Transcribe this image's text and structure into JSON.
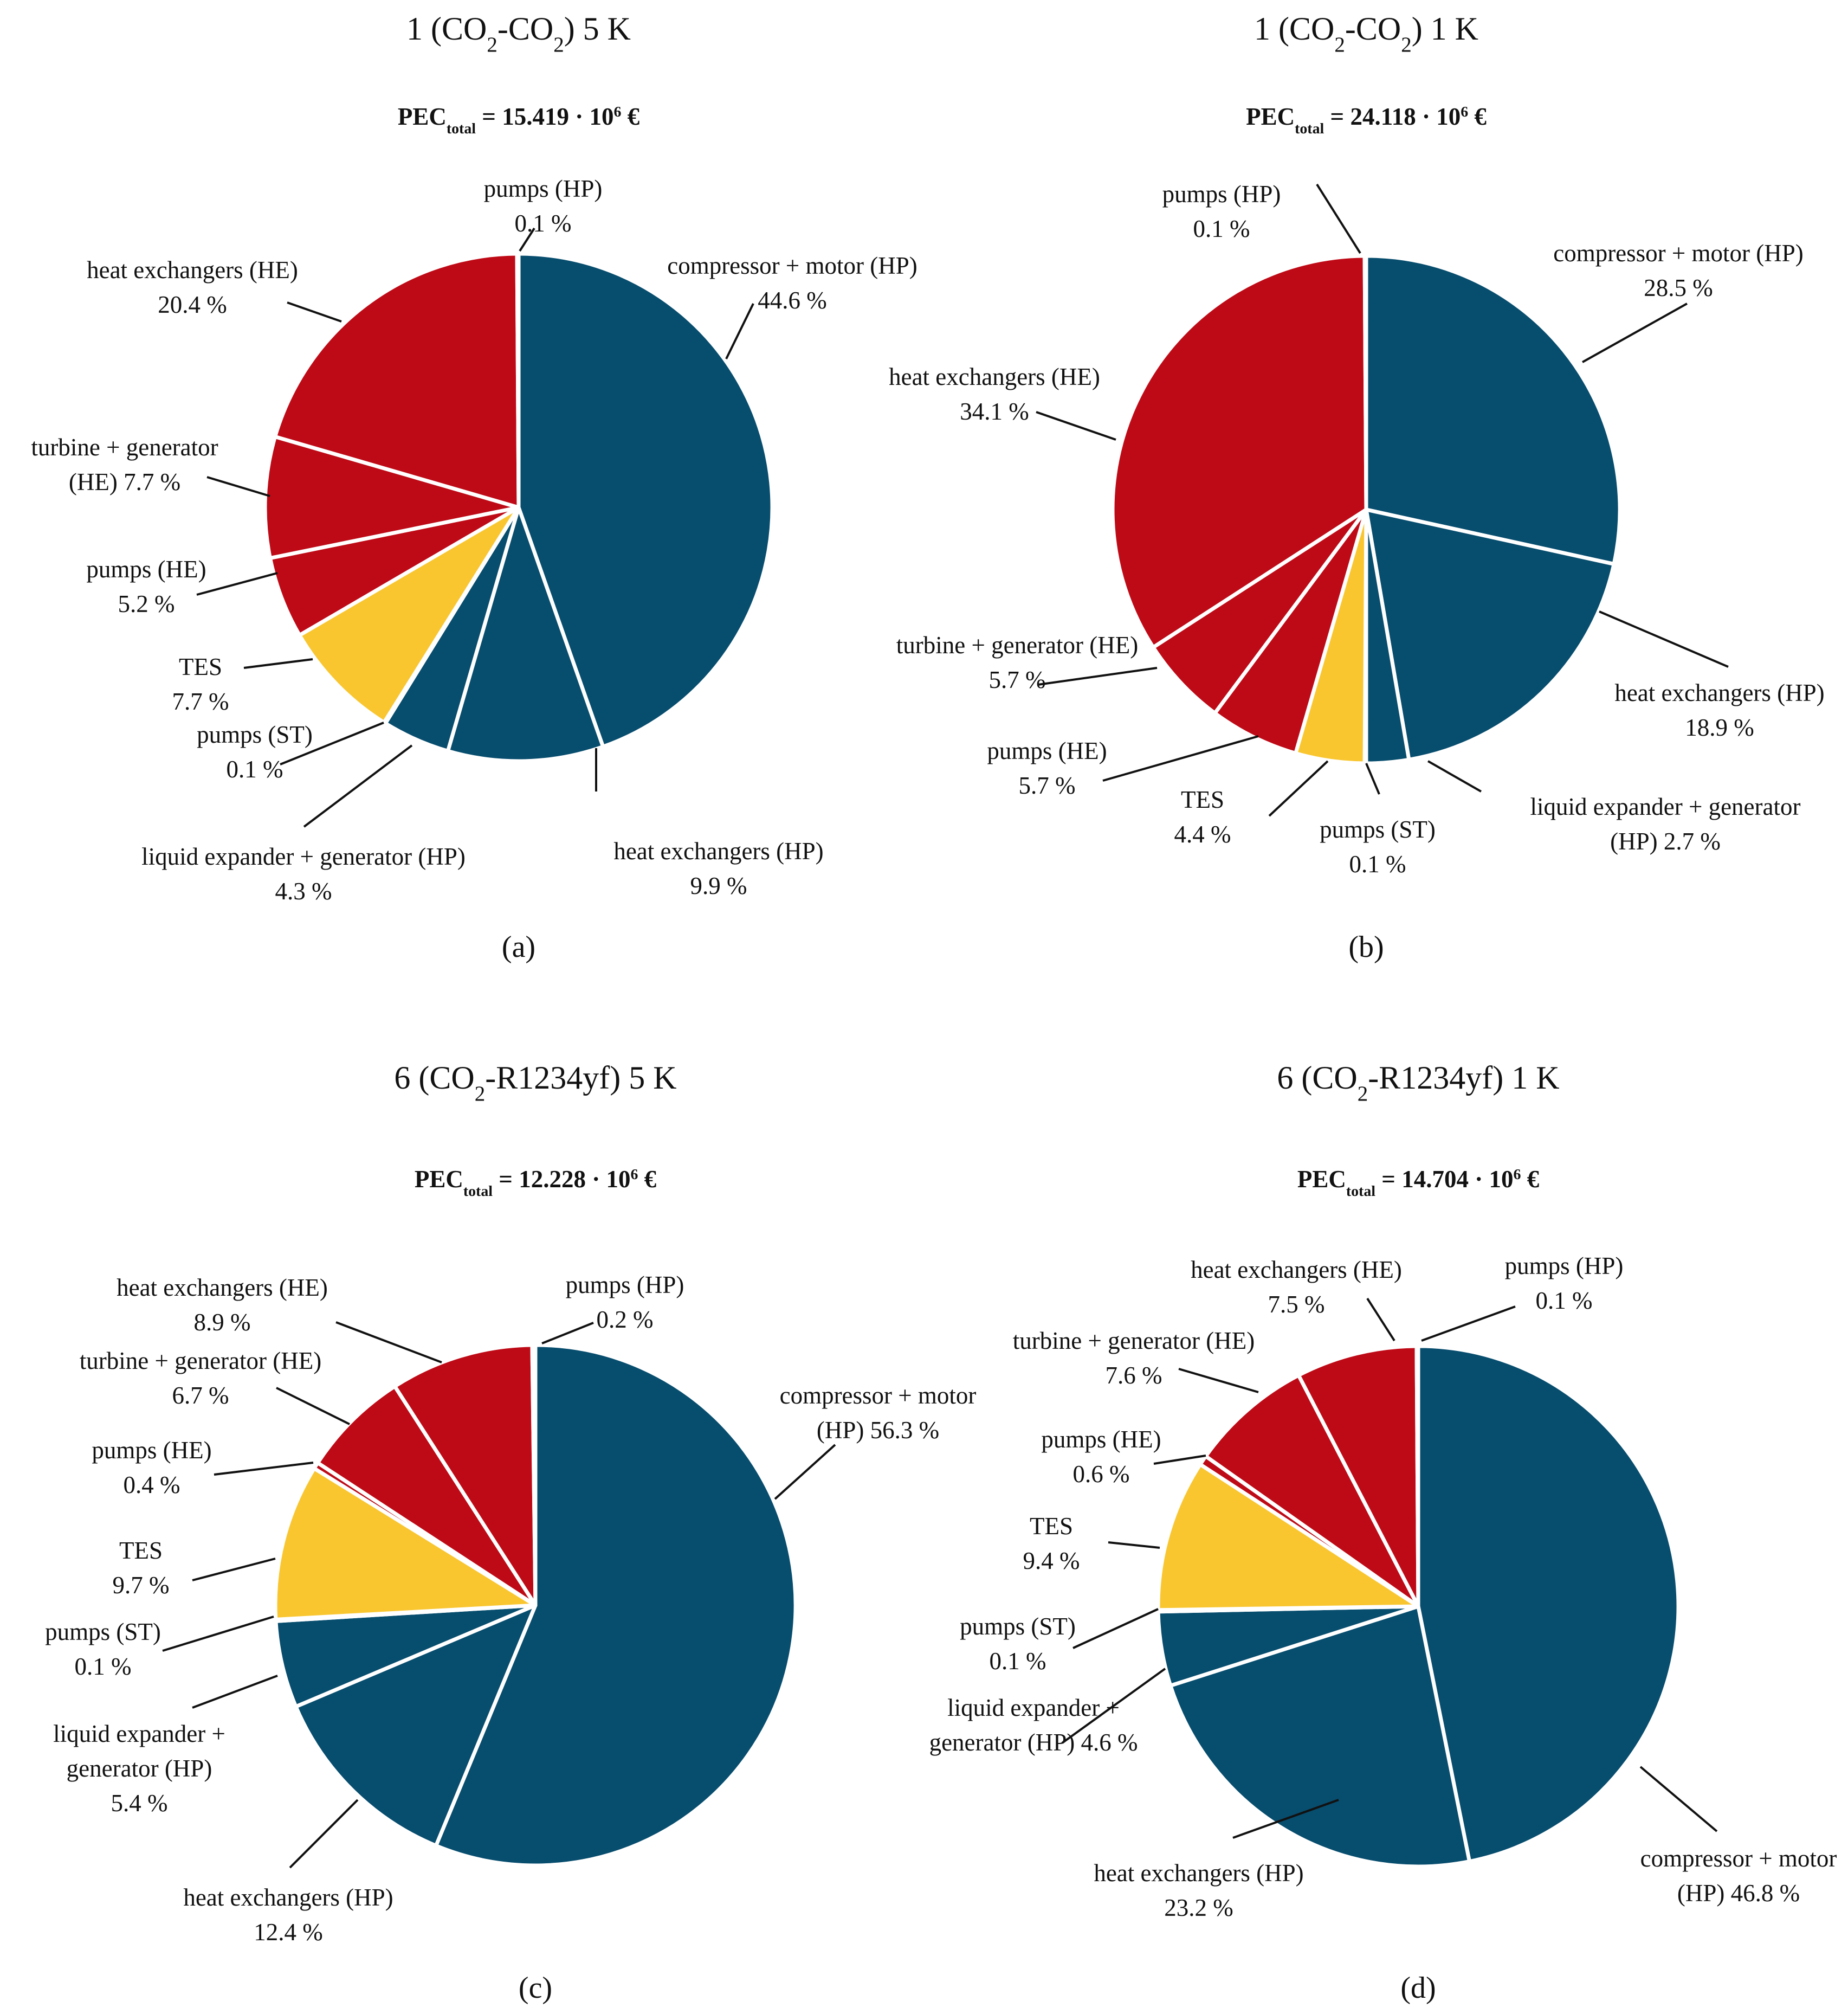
{
  "colors": {
    "HP": "#074D6E",
    "HE": "#BE0A16",
    "ST": "#F9C630"
  },
  "chart_data": [
    {
      "type": "pie",
      "title": {
        "pre": "1 (CO",
        "sub1": "2",
        "mid": "-CO",
        "sub2": "2",
        "post": ") 5 K"
      },
      "pec": {
        "pre": "PEC",
        "sub": "total",
        "mid": " = 15.419 · 10",
        "sup": "6",
        "post": " €"
      },
      "panel_label": "(a)",
      "slices": [
        {
          "name": "compressor + motor (HP)",
          "value": 44.6,
          "group": "HP",
          "label": [
            "compressor + motor (HP)",
            "44.6 %"
          ]
        },
        {
          "name": "heat exchangers (HP)",
          "value": 9.9,
          "group": "HP",
          "label": [
            "heat exchangers (HP)",
            "9.9 %"
          ]
        },
        {
          "name": "liquid expander + generator (HP)",
          "value": 4.3,
          "group": "HP",
          "label": [
            "liquid expander + generator (HP)",
            "4.3 %"
          ]
        },
        {
          "name": "pumps (ST)",
          "value": 0.1,
          "group": "ST",
          "label": [
            "pumps (ST)",
            "0.1 %"
          ]
        },
        {
          "name": "TES",
          "value": 7.7,
          "group": "ST",
          "label": [
            "TES",
            "7.7 %"
          ]
        },
        {
          "name": "pumps (HE)",
          "value": 5.2,
          "group": "HE",
          "label": [
            "pumps (HE)",
            "5.2 %"
          ]
        },
        {
          "name": "turbine + generator (HE)",
          "value": 7.7,
          "group": "HE",
          "label": [
            "turbine + generator",
            "(HE) 7.7 %"
          ]
        },
        {
          "name": "heat exchangers (HE)",
          "value": 20.4,
          "group": "HE",
          "label": [
            "heat exchangers (HE)",
            "20.4 %"
          ]
        },
        {
          "name": "pumps (HP)",
          "value": 0.1,
          "group": "HP",
          "label": [
            "pumps (HP)",
            "0.1 %"
          ]
        }
      ]
    },
    {
      "type": "pie",
      "title": {
        "pre": "1 (CO",
        "sub1": "2",
        "mid": "-CO",
        "sub2": "2",
        "post": ") 1 K"
      },
      "pec": {
        "pre": "PEC",
        "sub": "total",
        "mid": " = 24.118 · 10",
        "sup": "6",
        "post": " €"
      },
      "panel_label": "(b)",
      "slices": [
        {
          "name": "compressor + motor (HP)",
          "value": 28.5,
          "group": "HP",
          "label": [
            "compressor + motor (HP)",
            "28.5 %"
          ]
        },
        {
          "name": "heat exchangers (HP)",
          "value": 18.9,
          "group": "HP",
          "label": [
            "heat exchangers (HP)",
            "18.9 %"
          ]
        },
        {
          "name": "liquid expander + generator (HP)",
          "value": 2.7,
          "group": "HP",
          "label": [
            "liquid expander + generator",
            "(HP) 2.7 %"
          ]
        },
        {
          "name": "pumps (ST)",
          "value": 0.1,
          "group": "ST",
          "label": [
            "pumps (ST)",
            "0.1 %"
          ]
        },
        {
          "name": "TES",
          "value": 4.4,
          "group": "ST",
          "label": [
            "TES",
            "4.4 %"
          ]
        },
        {
          "name": "pumps (HE)",
          "value": 5.7,
          "group": "HE",
          "label": [
            "pumps (HE)",
            "5.7 %"
          ]
        },
        {
          "name": "turbine + generator (HE)",
          "value": 5.7,
          "group": "HE",
          "label": [
            "turbine + generator (HE)",
            "5.7 %"
          ]
        },
        {
          "name": "heat exchangers (HE)",
          "value": 34.1,
          "group": "HE",
          "label": [
            "heat exchangers (HE)",
            "34.1 %"
          ]
        },
        {
          "name": "pumps (HP)",
          "value": 0.1,
          "group": "HP",
          "label": [
            "pumps (HP)",
            "0.1 %"
          ]
        }
      ]
    },
    {
      "type": "pie",
      "title": {
        "pre": "6 (CO",
        "sub1": "2",
        "mid": "-R1234yf) 5 K",
        "sub2": "",
        "post": ""
      },
      "pec": {
        "pre": "PEC",
        "sub": "total",
        "mid": " = 12.228 · 10",
        "sup": "6",
        "post": " €"
      },
      "panel_label": "(c)",
      "slices": [
        {
          "name": "compressor + motor (HP)",
          "value": 56.3,
          "group": "HP",
          "label": [
            "compressor + motor",
            "(HP) 56.3 %"
          ]
        },
        {
          "name": "heat exchangers (HP)",
          "value": 12.4,
          "group": "HP",
          "label": [
            "heat exchangers (HP)",
            "12.4 %"
          ]
        },
        {
          "name": "liquid expander + generator (HP)",
          "value": 5.4,
          "group": "HP",
          "label": [
            "liquid expander +",
            "generator (HP)",
            "5.4 %"
          ]
        },
        {
          "name": "pumps (ST)",
          "value": 0.1,
          "group": "ST",
          "label": [
            "pumps (ST)",
            "0.1 %"
          ]
        },
        {
          "name": "TES",
          "value": 9.7,
          "group": "ST",
          "label": [
            "TES",
            "9.7 %"
          ]
        },
        {
          "name": "pumps (HE)",
          "value": 0.4,
          "group": "HE",
          "label": [
            "pumps (HE)",
            "0.4 %"
          ]
        },
        {
          "name": "turbine + generator (HE)",
          "value": 6.7,
          "group": "HE",
          "label": [
            "turbine + generator (HE)",
            "6.7 %"
          ]
        },
        {
          "name": "heat exchangers (HE)",
          "value": 8.9,
          "group": "HE",
          "label": [
            "heat exchangers (HE)",
            "8.9 %"
          ]
        },
        {
          "name": "pumps (HP)",
          "value": 0.2,
          "group": "HP",
          "label": [
            "pumps (HP)",
            "0.2 %"
          ]
        }
      ]
    },
    {
      "type": "pie",
      "title": {
        "pre": "6 (CO",
        "sub1": "2",
        "mid": "-R1234yf) 1 K",
        "sub2": "",
        "post": ""
      },
      "pec": {
        "pre": "PEC",
        "sub": "total",
        "mid": " = 14.704 · 10",
        "sup": "6",
        "post": " €"
      },
      "panel_label": "(d)",
      "slices": [
        {
          "name": "compressor + motor (HP)",
          "value": 46.8,
          "group": "HP",
          "label": [
            "compressor + motor",
            "(HP) 46.8 %"
          ]
        },
        {
          "name": "heat exchangers (HP)",
          "value": 23.2,
          "group": "HP",
          "label": [
            "heat exchangers (HP)",
            "23.2 %"
          ]
        },
        {
          "name": "liquid expander + generator (HP)",
          "value": 4.6,
          "group": "HP",
          "label": [
            "liquid expander +",
            "generator (HP) 4.6 %"
          ]
        },
        {
          "name": "pumps (ST)",
          "value": 0.1,
          "group": "ST",
          "label": [
            "pumps (ST)",
            "0.1 %"
          ]
        },
        {
          "name": "TES",
          "value": 9.4,
          "group": "ST",
          "label": [
            "TES",
            "9.4 %"
          ]
        },
        {
          "name": "pumps (HE)",
          "value": 0.6,
          "group": "HE",
          "label": [
            "pumps (HE)",
            "0.6 %"
          ]
        },
        {
          "name": "turbine + generator (HE)",
          "value": 7.6,
          "group": "HE",
          "label": [
            "turbine + generator (HE)",
            "7.6 %"
          ]
        },
        {
          "name": "heat exchangers (HE)",
          "value": 7.5,
          "group": "HE",
          "label": [
            "heat exchangers (HE)",
            "7.5 %"
          ]
        },
        {
          "name": "pumps (HP)",
          "value": 0.1,
          "group": "HP",
          "label": [
            "pumps (HP)",
            "0.1 %"
          ]
        }
      ]
    }
  ]
}
